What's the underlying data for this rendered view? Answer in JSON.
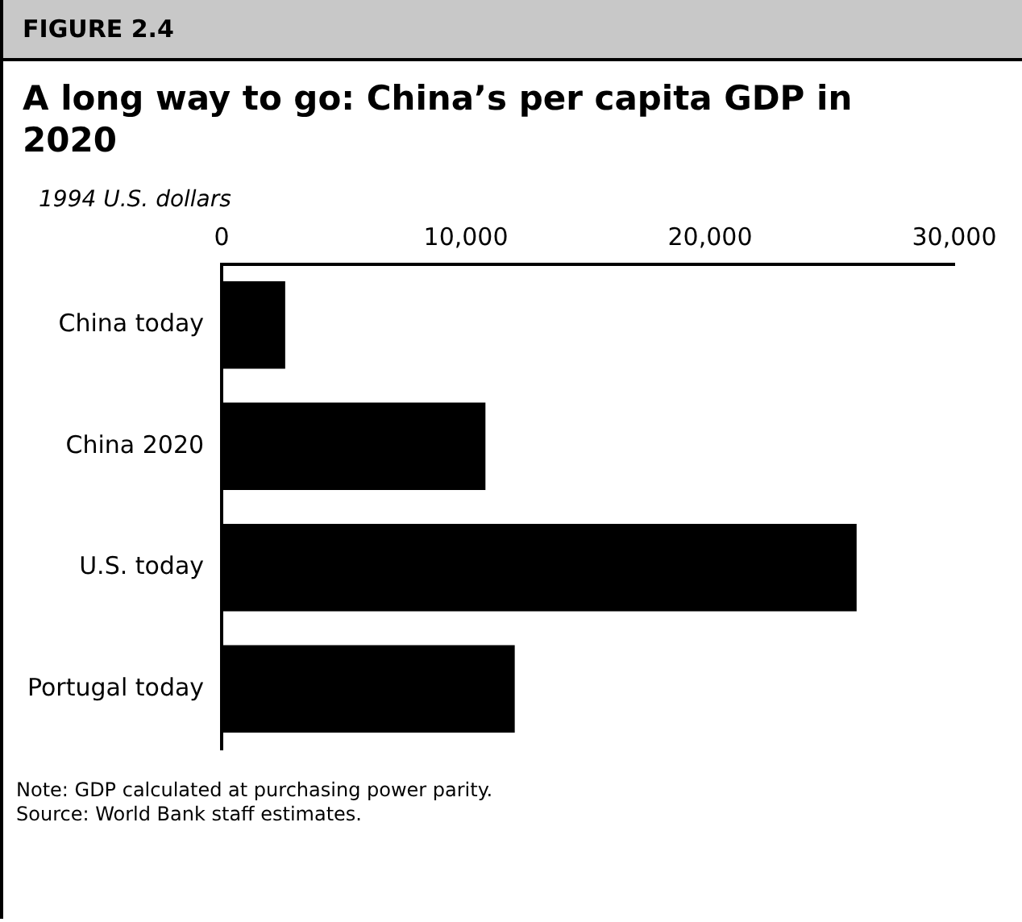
{
  "chart_data": {
    "type": "bar",
    "orientation": "horizontal",
    "subtitle": "FIGURE 2.4",
    "title": "A long way to go: China’s per capita GDP in 2020",
    "xlabel": "1994 U.S. dollars",
    "categories": [
      "China today",
      "China 2020",
      "U.S. today",
      "Portugal today"
    ],
    "values": [
      2600,
      10800,
      26000,
      12000
    ],
    "color": "#000000",
    "xlim": [
      0,
      30000
    ],
    "xticks": [
      0,
      {
        "value": 10000,
        "label": "10,000"
      },
      {
        "value": 20000,
        "label": "20,000"
      },
      {
        "value": 30000,
        "label": "30,000"
      }
    ],
    "grid": false,
    "legend": false,
    "annotations": [
      "Note: GDP calculated at purchasing power parity.",
      "Source: World Bank staff estimates."
    ]
  }
}
